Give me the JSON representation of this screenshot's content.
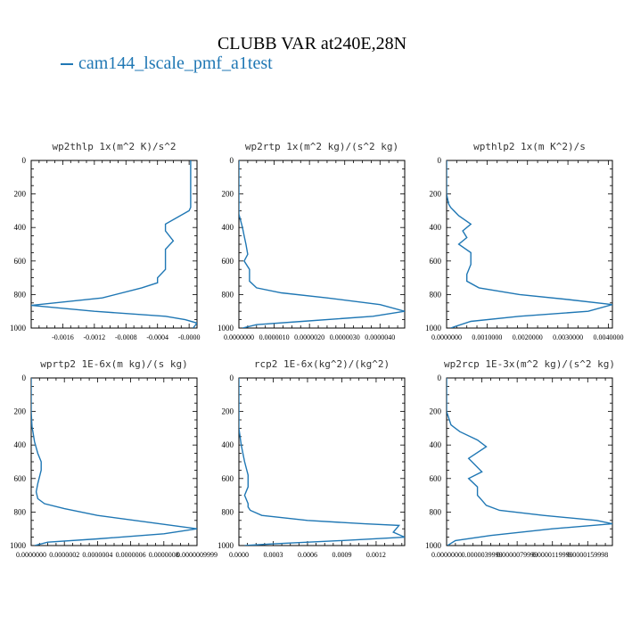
{
  "title": "CLUBB VAR at240E,28N",
  "legend": {
    "label": "cam144_lscale_pmf_a1test",
    "color": "#1f77b4"
  },
  "chart_data": [
    {
      "type": "line",
      "title": "wp2thlp  1x(m^2 K)/s^2",
      "xlim": [
        -0.002,
        0.0001
      ],
      "ylim": [
        1000,
        0
      ],
      "y_ticks": [
        0,
        200,
        400,
        600,
        800,
        1000
      ],
      "x_ticks": [
        -0.0016,
        -0.0012,
        -0.0008,
        -0.0004,
        0.0
      ],
      "x_tick_labels": [
        "-0.0016",
        "-0.0012",
        "-0.0008",
        "-0.0004",
        "-0.0000"
      ],
      "series": [
        {
          "x": [
            2e-05,
            2e-05,
            2e-05,
            2e-05,
            0.0,
            -0.0003,
            -0.0003,
            -0.0002,
            -0.0003,
            -0.0003,
            -0.0003,
            -0.0004,
            -0.0004,
            -0.0006,
            -0.0011,
            -0.002,
            -0.0012,
            -0.0003,
            -5e-05,
            0.0001,
            5e-05
          ],
          "y": [
            0,
            100,
            200,
            280,
            300,
            380,
            420,
            480,
            530,
            600,
            650,
            700,
            730,
            760,
            820,
            865,
            900,
            930,
            950,
            970,
            1000
          ]
        }
      ]
    },
    {
      "type": "line",
      "title": "wp2rtp  1x(m^2 kg)/(s^2 kg)",
      "xlim": [
        0.0,
        4.7e-06
      ],
      "ylim": [
        1000,
        0
      ],
      "y_ticks": [
        0,
        200,
        400,
        600,
        800,
        1000
      ],
      "x_ticks": [
        0.0,
        1e-06,
        2e-06,
        3e-06,
        4e-06
      ],
      "x_tick_labels": [
        "0.0000000",
        "0.0000010",
        "0.0000020",
        "0.0000030",
        "0.0000040"
      ],
      "series": [
        {
          "x": [
            0.0,
            0.0,
            0.0,
            5e-08,
            1e-07,
            1.5e-07,
            2e-07,
            2.5e-07,
            1.5e-07,
            3e-07,
            3e-07,
            5e-07,
            1.2e-06,
            2.5e-06,
            4e-06,
            4.7e-06,
            3.8e-06,
            1.8e-06,
            5e-07,
            1e-07
          ],
          "y": [
            0,
            200,
            320,
            360,
            400,
            450,
            500,
            560,
            600,
            650,
            720,
            760,
            790,
            820,
            860,
            900,
            930,
            960,
            980,
            1000
          ]
        }
      ]
    },
    {
      "type": "line",
      "title": "wpthlp2  1x(m K^2)/s",
      "xlim": [
        0.0,
        0.0041
      ],
      "ylim": [
        1000,
        0
      ],
      "y_ticks": [
        0,
        200,
        400,
        600,
        800,
        1000
      ],
      "x_ticks": [
        0.0,
        0.001,
        0.002,
        0.003,
        0.004
      ],
      "x_tick_labels": [
        "0.0000000",
        "0.0010000",
        "0.0020000",
        "0.0030000",
        "0.0040000"
      ],
      "series": [
        {
          "x": [
            0.0,
            0.0,
            5e-05,
            0.0001,
            0.0003,
            0.0006,
            0.0004,
            0.0005,
            0.0003,
            0.0006,
            0.0006,
            0.0005,
            0.0005,
            0.0008,
            0.0018,
            0.003,
            0.0041,
            0.0035,
            0.0018,
            0.0006,
            0.0001
          ],
          "y": [
            0,
            200,
            260,
            280,
            330,
            380,
            420,
            460,
            500,
            550,
            620,
            680,
            720,
            760,
            800,
            830,
            860,
            900,
            930,
            960,
            1000
          ]
        }
      ]
    },
    {
      "type": "line",
      "title": "wprtp2  1E-6x(m kg)/(s kg)",
      "xlim": [
        0.0,
        1e-06
      ],
      "ylim": [
        1000,
        0
      ],
      "y_ticks": [
        0,
        200,
        400,
        600,
        800,
        1000
      ],
      "x_ticks": [
        0.0,
        2e-07,
        4e-07,
        6e-07,
        8e-07,
        1e-06
      ],
      "x_tick_labels": [
        "0.0000000",
        "0.0000002",
        "0.0000004",
        "0.0000006",
        "0.0000008",
        "0.0000009999"
      ],
      "series": [
        {
          "x": [
            0.0,
            0.0,
            5e-09,
            1e-08,
            2e-08,
            4e-08,
            6e-08,
            6e-08,
            5e-08,
            4e-08,
            3e-08,
            4e-08,
            8e-08,
            2e-07,
            4e-07,
            7e-07,
            1e-06,
            8e-07,
            4e-07,
            1e-07,
            2e-08
          ],
          "y": [
            0,
            200,
            290,
            320,
            380,
            450,
            500,
            550,
            590,
            630,
            680,
            720,
            750,
            780,
            820,
            860,
            900,
            930,
            960,
            980,
            1000
          ]
        }
      ]
    },
    {
      "type": "line",
      "title": "rcp2  1E-6x(kg^2)/(kg^2)",
      "xlim": [
        0.0,
        0.00145
      ],
      "ylim": [
        1000,
        0
      ],
      "y_ticks": [
        0,
        200,
        400,
        600,
        800,
        1000
      ],
      "x_ticks": [
        0.0,
        0.0003,
        0.0006,
        0.0009,
        0.0012
      ],
      "x_tick_labels": [
        "0.0000",
        "0.0003",
        "0.0006",
        "0.0009",
        "0.0012"
      ],
      "series": [
        {
          "x": [
            0.0,
            0.0,
            2e-05,
            5e-05,
            8e-05,
            8e-05,
            5e-05,
            8e-05,
            8e-05,
            0.0001,
            0.0002,
            0.0006,
            0.0011,
            0.0014,
            0.00135,
            0.00145,
            0.0009,
            0.0003,
            5e-05
          ],
          "y": [
            0,
            300,
            400,
            500,
            580,
            650,
            700,
            750,
            770,
            790,
            820,
            850,
            870,
            880,
            920,
            950,
            970,
            990,
            1000
          ]
        }
      ]
    },
    {
      "type": "line",
      "title": "wp2rcp  1E-3x(m^2 kg)/(s^2 kg)",
      "xlim": [
        0.0,
        1.88e-05
      ],
      "ylim": [
        1000,
        0
      ],
      "y_ticks": [
        0,
        200,
        400,
        600,
        800,
        1000
      ],
      "x_ticks": [
        0.0,
        4e-06,
        8e-06,
        1.2e-05,
        1.6e-05
      ],
      "x_tick_labels": [
        "0.0000000",
        "0.0000039999",
        "0.0000079999",
        "0.0000119999",
        "0.0000159998"
      ],
      "series": [
        {
          "x": [
            0.0,
            0.0,
            5e-07,
            1.5e-06,
            3.5e-06,
            4.5e-06,
            2.5e-06,
            4e-06,
            2.5e-06,
            3.5e-06,
            3.5e-06,
            4e-06,
            4.5e-06,
            6e-06,
            1.1e-05,
            1.7e-05,
            1.88e-05,
            1.2e-05,
            5e-06,
            1e-06,
            1e-07
          ],
          "y": [
            0,
            200,
            280,
            320,
            370,
            410,
            480,
            560,
            600,
            650,
            700,
            730,
            760,
            790,
            820,
            850,
            870,
            900,
            940,
            970,
            1000
          ]
        }
      ]
    }
  ]
}
